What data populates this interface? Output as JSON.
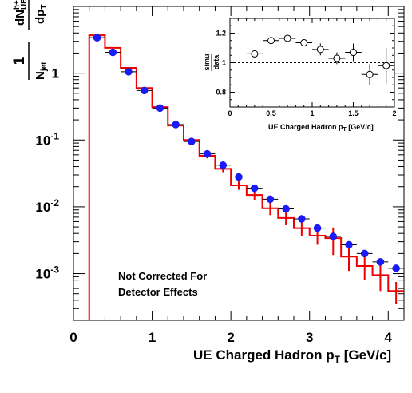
{
  "chart_data": [
    {
      "type": "scatter",
      "xlabel": "UE Charged Hadron p_T [GeV/c]",
      "ylabel": "1/N_jet dN_UE^{h+/-}/dp_T",
      "xlim": [
        0,
        4.2
      ],
      "ylim": [
        0.0002,
        10
      ],
      "y_scale": "log",
      "x_ticks": [
        "0",
        "1",
        "2",
        "3",
        "4"
      ],
      "y_ticks": [
        {
          "mantissa": "10",
          "exp": "-3"
        },
        {
          "mantissa": "10",
          "exp": "-2"
        },
        {
          "mantissa": "10",
          "exp": "-1"
        },
        {
          "mantissa": "1",
          "exp": ""
        }
      ],
      "annotation": [
        "Not Corrected For",
        "Detector Effects"
      ],
      "series": [
        {
          "style": "markers",
          "color": "#1a1aff",
          "points": [
            {
              "x": 0.3,
              "y": 3.4,
              "xerr": 0.1
            },
            {
              "x": 0.5,
              "y": 2.05,
              "xerr": 0.1
            },
            {
              "x": 0.7,
              "y": 1.05,
              "xerr": 0.1
            },
            {
              "x": 0.9,
              "y": 0.55,
              "xerr": 0.1
            },
            {
              "x": 1.1,
              "y": 0.3,
              "xerr": 0.1
            },
            {
              "x": 1.3,
              "y": 0.17,
              "xerr": 0.1
            },
            {
              "x": 1.5,
              "y": 0.095,
              "xerr": 0.1
            },
            {
              "x": 1.7,
              "y": 0.062,
              "xerr": 0.1
            },
            {
              "x": 1.9,
              "y": 0.042,
              "xerr": 0.1
            },
            {
              "x": 2.1,
              "y": 0.028,
              "xerr": 0.1
            },
            {
              "x": 2.3,
              "y": 0.019,
              "xerr": 0.1
            },
            {
              "x": 2.5,
              "y": 0.013,
              "xerr": 0.1
            },
            {
              "x": 2.7,
              "y": 0.0093,
              "xerr": 0.1
            },
            {
              "x": 2.9,
              "y": 0.0066,
              "xerr": 0.1
            },
            {
              "x": 3.1,
              "y": 0.0048,
              "xerr": 0.1
            },
            {
              "x": 3.3,
              "y": 0.0036,
              "xerr": 0.1
            },
            {
              "x": 3.5,
              "y": 0.0027,
              "xerr": 0.1
            },
            {
              "x": 3.7,
              "y": 0.002,
              "xerr": 0.1
            },
            {
              "x": 3.9,
              "y": 0.0015,
              "xerr": 0.1
            },
            {
              "x": 4.1,
              "y": 0.0012,
              "xerr": 0.1
            }
          ]
        },
        {
          "style": "histogram",
          "color": "#ee0000",
          "bins": [
            {
              "lo": 0.2,
              "hi": 0.4,
              "y": 3.7,
              "yerr": 0
            },
            {
              "lo": 0.4,
              "hi": 0.6,
              "y": 2.4,
              "yerr": 0
            },
            {
              "lo": 0.6,
              "hi": 0.8,
              "y": 1.2,
              "yerr": 0
            },
            {
              "lo": 0.8,
              "hi": 1.0,
              "y": 0.6,
              "yerr": 0
            },
            {
              "lo": 1.0,
              "hi": 1.2,
              "y": 0.31,
              "yerr": 0
            },
            {
              "lo": 1.2,
              "hi": 1.4,
              "y": 0.165,
              "yerr": 0
            },
            {
              "lo": 1.4,
              "hi": 1.6,
              "y": 0.1,
              "yerr": 0.004
            },
            {
              "lo": 1.6,
              "hi": 1.8,
              "y": 0.058,
              "yerr": 0.005
            },
            {
              "lo": 1.8,
              "hi": 2.0,
              "y": 0.037,
              "yerr": 0.004
            },
            {
              "lo": 2.0,
              "hi": 2.2,
              "y": 0.021,
              "yerr": 0.003
            },
            {
              "lo": 2.2,
              "hi": 2.4,
              "y": 0.015,
              "yerr": 0.0025
            },
            {
              "lo": 2.4,
              "hi": 2.6,
              "y": 0.0095,
              "yerr": 0.002
            },
            {
              "lo": 2.6,
              "hi": 2.8,
              "y": 0.0068,
              "yerr": 0.0015
            },
            {
              "lo": 2.8,
              "hi": 3.0,
              "y": 0.0048,
              "yerr": 0.0012
            },
            {
              "lo": 3.0,
              "hi": 3.2,
              "y": 0.0037,
              "yerr": 0.001
            },
            {
              "lo": 3.2,
              "hi": 3.4,
              "y": 0.0034,
              "yerr": 0.0015
            },
            {
              "lo": 3.4,
              "hi": 3.6,
              "y": 0.0018,
              "yerr": 0.0007
            },
            {
              "lo": 3.6,
              "hi": 3.8,
              "y": 0.0013,
              "yerr": 0.0005
            },
            {
              "lo": 3.8,
              "hi": 4.0,
              "y": 0.00095,
              "yerr": 0.0004
            },
            {
              "lo": 4.0,
              "hi": 4.2,
              "y": 0.00055,
              "yerr": 0.0002
            }
          ]
        }
      ]
    },
    {
      "type": "scatter",
      "xlabel": "UE Charged Hadron p_T [GeV/c]",
      "ylabel": "simu/data",
      "xlim": [
        0,
        2
      ],
      "ylim": [
        0.7,
        1.3
      ],
      "x_ticks": [
        "0",
        "0.5",
        "1",
        "1.5",
        "2"
      ],
      "y_ticks": [
        "0.8",
        "1",
        "1.2"
      ],
      "reference_line": 1,
      "series": [
        {
          "style": "open-markers",
          "color": "#000000",
          "points": [
            {
              "x": 0.3,
              "y": 1.06,
              "xerr": 0.1,
              "yerr": 0.01
            },
            {
              "x": 0.5,
              "y": 1.15,
              "xerr": 0.1,
              "yerr": 0.01
            },
            {
              "x": 0.7,
              "y": 1.165,
              "xerr": 0.1,
              "yerr": 0.01
            },
            {
              "x": 0.9,
              "y": 1.135,
              "xerr": 0.1,
              "yerr": 0.02
            },
            {
              "x": 1.1,
              "y": 1.09,
              "xerr": 0.1,
              "yerr": 0.04
            },
            {
              "x": 1.3,
              "y": 1.03,
              "xerr": 0.1,
              "yerr": 0.04
            },
            {
              "x": 1.5,
              "y": 1.07,
              "xerr": 0.1,
              "yerr": 0.06
            },
            {
              "x": 1.7,
              "y": 0.92,
              "xerr": 0.1,
              "yerr": 0.07
            },
            {
              "x": 1.9,
              "y": 0.98,
              "xerr": 0.1,
              "yerr": 0.12
            }
          ]
        }
      ]
    }
  ]
}
